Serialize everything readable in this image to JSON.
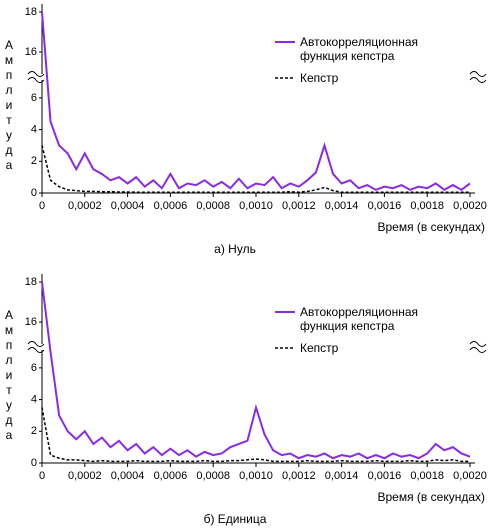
{
  "chart_data": [
    {
      "type": "line",
      "caption": "а) Нуль",
      "ylabel": "Амплитуда",
      "xlabel": "Время (в секундах)",
      "x": [
        0,
        4e-05,
        8e-05,
        0.00012,
        0.00016,
        0.0002,
        0.00024,
        0.00028,
        0.00032,
        0.00036,
        0.0004,
        0.00044,
        0.00048,
        0.00052,
        0.00056,
        0.0006,
        0.00064,
        0.00068,
        0.00072,
        0.00076,
        0.0008,
        0.00084,
        0.00088,
        0.00092,
        0.00096,
        0.001,
        0.00104,
        0.00108,
        0.00112,
        0.00116,
        0.0012,
        0.00124,
        0.00128,
        0.00132,
        0.00136,
        0.0014,
        0.00144,
        0.00148,
        0.00152,
        0.00156,
        0.0016,
        0.00164,
        0.00168,
        0.00172,
        0.00176,
        0.0018,
        0.00184,
        0.00188,
        0.00192,
        0.00196,
        0.002
      ],
      "series": [
        {
          "name": "Автокорреляционная функция кепстра",
          "color": "#8a2be2",
          "linestyle": "solid",
          "values": [
            18,
            4.5,
            3,
            2.5,
            1.5,
            2.5,
            1.5,
            1.2,
            0.8,
            1,
            0.6,
            1,
            0.4,
            0.8,
            0.3,
            1.2,
            0.3,
            0.6,
            0.5,
            0.8,
            0.4,
            0.7,
            0.3,
            0.9,
            0.3,
            0.6,
            0.5,
            1,
            0.3,
            0.6,
            0.4,
            0.8,
            1.3,
            3,
            1.2,
            0.6,
            0.8,
            0.3,
            0.5,
            0.2,
            0.4,
            0.3,
            0.5,
            0.2,
            0.4,
            0.3,
            0.6,
            0.2,
            0.5,
            0.2,
            0.6
          ]
        },
        {
          "name": "Кепстр",
          "color": "#000000",
          "linestyle": "dashed",
          "values": [
            3,
            0.8,
            0.4,
            0.2,
            0.15,
            0.1,
            0.1,
            0.08,
            0.08,
            0.06,
            0.06,
            0.05,
            0.05,
            0.05,
            0.05,
            0.05,
            0.05,
            0.05,
            0.05,
            0.05,
            0.05,
            0.05,
            0.05,
            0.05,
            0.05,
            0.05,
            0.05,
            0.05,
            0.05,
            0.08,
            0.05,
            0.1,
            0.2,
            0.35,
            0.15,
            0.05,
            0.05,
            0.05,
            0.05,
            0.05,
            0.05,
            0.05,
            0.05,
            0.05,
            0.05,
            0.05,
            0.05,
            0.05,
            0.05,
            0.05,
            0.05
          ]
        }
      ],
      "xlim": [
        0,
        0.002
      ],
      "xticks": [
        0,
        {
          "value": 0.0002,
          "label": "0,0002"
        },
        {
          "value": 0.0004,
          "label": "0,0004"
        },
        {
          "value": 0.0006,
          "label": "0,0006"
        },
        {
          "value": 0.0008,
          "label": "0,0008"
        },
        {
          "value": 0.001,
          "label": "0,0010"
        },
        {
          "value": 0.0012,
          "label": "0,0012"
        },
        {
          "value": 0.0014,
          "label": "0,0014"
        },
        {
          "value": 0.0016,
          "label": "0,0016"
        },
        {
          "value": 0.0018,
          "label": "0,0018"
        },
        {
          "value": 0.002,
          "label": "0,0020"
        }
      ],
      "ylim": [
        0,
        18
      ],
      "ybreak": [
        7,
        15
      ],
      "yticks": [
        0,
        2,
        4,
        6,
        16,
        18
      ],
      "legend": "top-right"
    },
    {
      "type": "line",
      "caption": "б) Единица",
      "ylabel": "Амплитуда",
      "xlabel": "Время (в секундах)",
      "x": [
        0,
        4e-05,
        8e-05,
        0.00012,
        0.00016,
        0.0002,
        0.00024,
        0.00028,
        0.00032,
        0.00036,
        0.0004,
        0.00044,
        0.00048,
        0.00052,
        0.00056,
        0.0006,
        0.00064,
        0.00068,
        0.00072,
        0.00076,
        0.0008,
        0.00084,
        0.00088,
        0.00092,
        0.00096,
        0.001,
        0.00104,
        0.00108,
        0.00112,
        0.00116,
        0.0012,
        0.00124,
        0.00128,
        0.00132,
        0.00136,
        0.0014,
        0.00144,
        0.00148,
        0.00152,
        0.00156,
        0.0016,
        0.00164,
        0.00168,
        0.00172,
        0.00176,
        0.0018,
        0.00184,
        0.00188,
        0.00192,
        0.00196,
        0.002
      ],
      "series": [
        {
          "name": "Автокорреляционная функция кепстра",
          "color": "#8a2be2",
          "linestyle": "solid",
          "values": [
            18,
            7,
            3,
            2,
            1.5,
            2,
            1.2,
            1.6,
            1,
            1.4,
            0.8,
            1.2,
            0.6,
            1,
            0.5,
            0.9,
            0.5,
            0.8,
            0.4,
            0.7,
            0.5,
            0.6,
            1,
            1.2,
            1.4,
            3.5,
            1.8,
            0.8,
            0.5,
            0.6,
            0.3,
            0.5,
            0.4,
            0.6,
            0.3,
            0.5,
            0.4,
            0.6,
            0.3,
            0.5,
            0.3,
            0.6,
            0.4,
            0.5,
            0.3,
            0.6,
            1.2,
            0.8,
            1,
            0.6,
            0.4
          ]
        },
        {
          "name": "Кепстр",
          "color": "#000000",
          "linestyle": "dashed",
          "values": [
            3.5,
            0.5,
            0.3,
            0.2,
            0.2,
            0.15,
            0.1,
            0.15,
            0.1,
            0.1,
            0.1,
            0.15,
            0.1,
            0.1,
            0.1,
            0.15,
            0.1,
            0.1,
            0.1,
            0.15,
            0.1,
            0.1,
            0.15,
            0.15,
            0.2,
            0.25,
            0.2,
            0.1,
            0.1,
            0.1,
            0.1,
            0.15,
            0.1,
            0.1,
            0.1,
            0.15,
            0.1,
            0.1,
            0.1,
            0.15,
            0.1,
            0.1,
            0.1,
            0.15,
            0.1,
            0.1,
            0.2,
            0.15,
            0.2,
            0.1,
            0.1
          ]
        }
      ],
      "xlim": [
        0,
        0.002
      ],
      "xticks": [
        0,
        {
          "value": 0.0002,
          "label": "0,0002"
        },
        {
          "value": 0.0004,
          "label": "0,0004"
        },
        {
          "value": 0.0006,
          "label": "0,0006"
        },
        {
          "value": 0.0008,
          "label": "0,0008"
        },
        {
          "value": 0.001,
          "label": "0,0010"
        },
        {
          "value": 0.0012,
          "label": "0,0012"
        },
        {
          "value": 0.0014,
          "label": "0,0014"
        },
        {
          "value": 0.0016,
          "label": "0,0016"
        },
        {
          "value": 0.0018,
          "label": "0,0018"
        },
        {
          "value": 0.002,
          "label": "0,0020"
        }
      ],
      "ylim": [
        0,
        18
      ],
      "ybreak": [
        7,
        15
      ],
      "yticks": [
        0,
        2,
        4,
        6,
        16,
        18
      ],
      "legend": "top-right"
    }
  ]
}
